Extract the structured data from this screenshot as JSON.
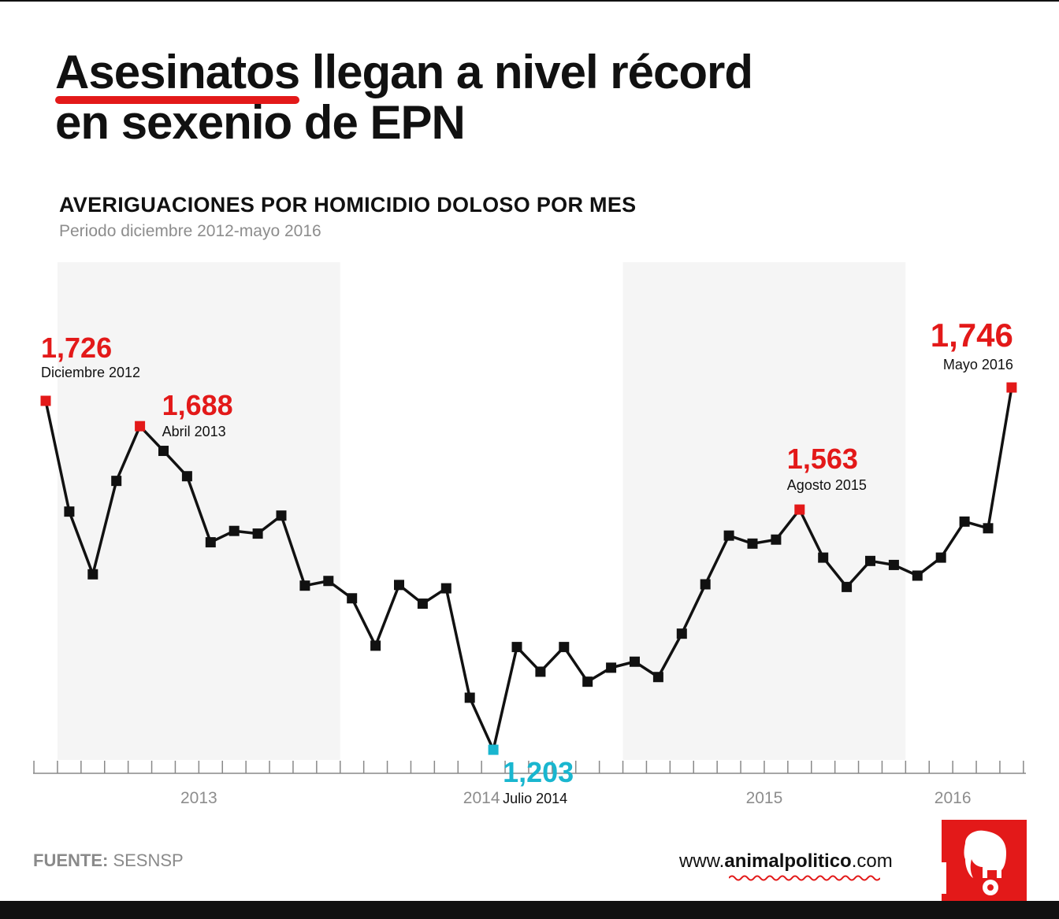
{
  "title": {
    "highlight": "Asesinatos",
    "rest_line1": " llegan a nivel récord",
    "line2": "en sexenio de EPN"
  },
  "subtitle": "AVERIGUACIONES POR HOMICIDIO DOLOSO POR MES",
  "period": "Periodo diciembre 2012-mayo 2016",
  "source": {
    "label": "FUENTE:",
    "value": " SESNSP"
  },
  "website": {
    "prefix": "www.",
    "brand": "animalpolitico",
    "suffix": ".com"
  },
  "logo": {
    "icon": "elephant-icon",
    "color": "#e31919"
  },
  "colors": {
    "line": "#111111",
    "highlight": "#e31919",
    "minimum": "#19b6cf",
    "band": "#f5f5f5",
    "axis": "#888888"
  },
  "chart_data": {
    "type": "line",
    "title": "AVERIGUACIONES POR HOMICIDIO DOLOSO POR MES",
    "subtitle": "Periodo diciembre 2012-mayo 2016",
    "x_start": "2012-12",
    "x_tick_labels": [
      "2013",
      "2014",
      "2015",
      "2016"
    ],
    "ylim": [
      1000,
      1850
    ],
    "grid": false,
    "series": [
      {
        "values": [
          1726,
          1560,
          1466,
          1606,
          1688,
          1651,
          1613,
          1514,
          1531,
          1527,
          1554,
          1449,
          1456,
          1430,
          1359,
          1450,
          1422,
          1445,
          1281,
          1203,
          1357,
          1320,
          1357,
          1305,
          1326,
          1335,
          1312,
          1377,
          1451,
          1524,
          1512,
          1518,
          1563,
          1491,
          1447,
          1486,
          1480,
          1464,
          1491,
          1545,
          1535,
          1746
        ]
      }
    ],
    "annotations": [
      {
        "index": 0,
        "value": "1,726",
        "label": "Diciembre 2012",
        "color": "#e31919"
      },
      {
        "index": 4,
        "value": "1,688",
        "label": "Abril 2013",
        "color": "#e31919"
      },
      {
        "index": 19,
        "value": "1,203",
        "label": "Julio 2014",
        "color": "#19b6cf"
      },
      {
        "index": 32,
        "value": "1,563",
        "label": "Agosto 2015",
        "color": "#e31919"
      },
      {
        "index": 41,
        "value": "1,746",
        "label": "Mayo 2016",
        "color": "#e31919"
      }
    ]
  }
}
